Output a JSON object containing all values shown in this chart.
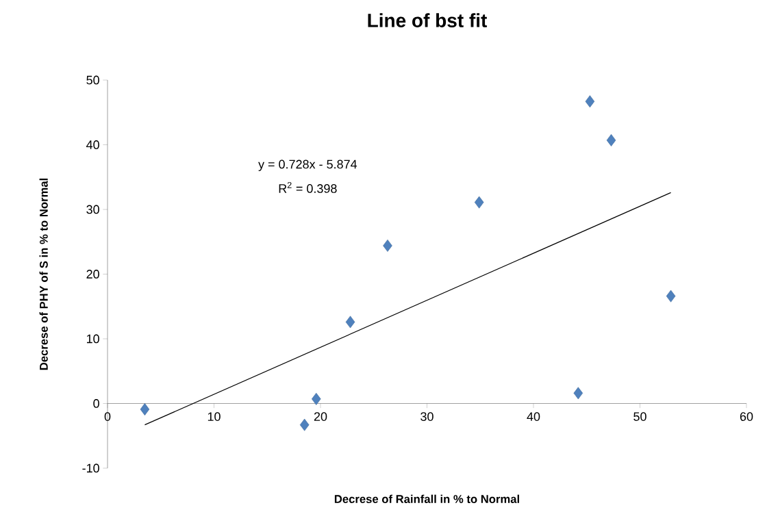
{
  "chart_data": {
    "type": "scatter",
    "title": "Line of bst fit",
    "xlabel": "Decrese of Rainfall in % to Normal",
    "ylabel": "Decrese of PHY of S in % to Normal",
    "annotations": [
      "y = 0.728x - 5.874",
      "R$^{2}$ = 0.398"
    ],
    "marker": "diamond",
    "series": [
      {
        "color": "#4f81bd",
        "x": [
          3.5,
          18.5,
          19.6,
          22.8,
          26.3,
          34.9,
          44.2,
          45.3,
          47.3,
          52.9
        ],
        "values": [
          -0.9,
          -3.3,
          0.7,
          12.6,
          24.4,
          31.1,
          1.6,
          46.7,
          40.7,
          16.6
        ]
      },
      {
        "type": "line",
        "marker": "none",
        "color": "#000000",
        "x": [
          3.5,
          52.9
        ],
        "values": [
          -3.3,
          32.6
        ]
      }
    ],
    "xlim": [
      0,
      60
    ],
    "ylim": [
      -10,
      50
    ],
    "xticks": [
      0,
      10,
      20,
      30,
      40,
      50,
      60
    ],
    "yticks": [
      -10,
      0,
      10,
      20,
      30,
      40,
      50
    ]
  }
}
